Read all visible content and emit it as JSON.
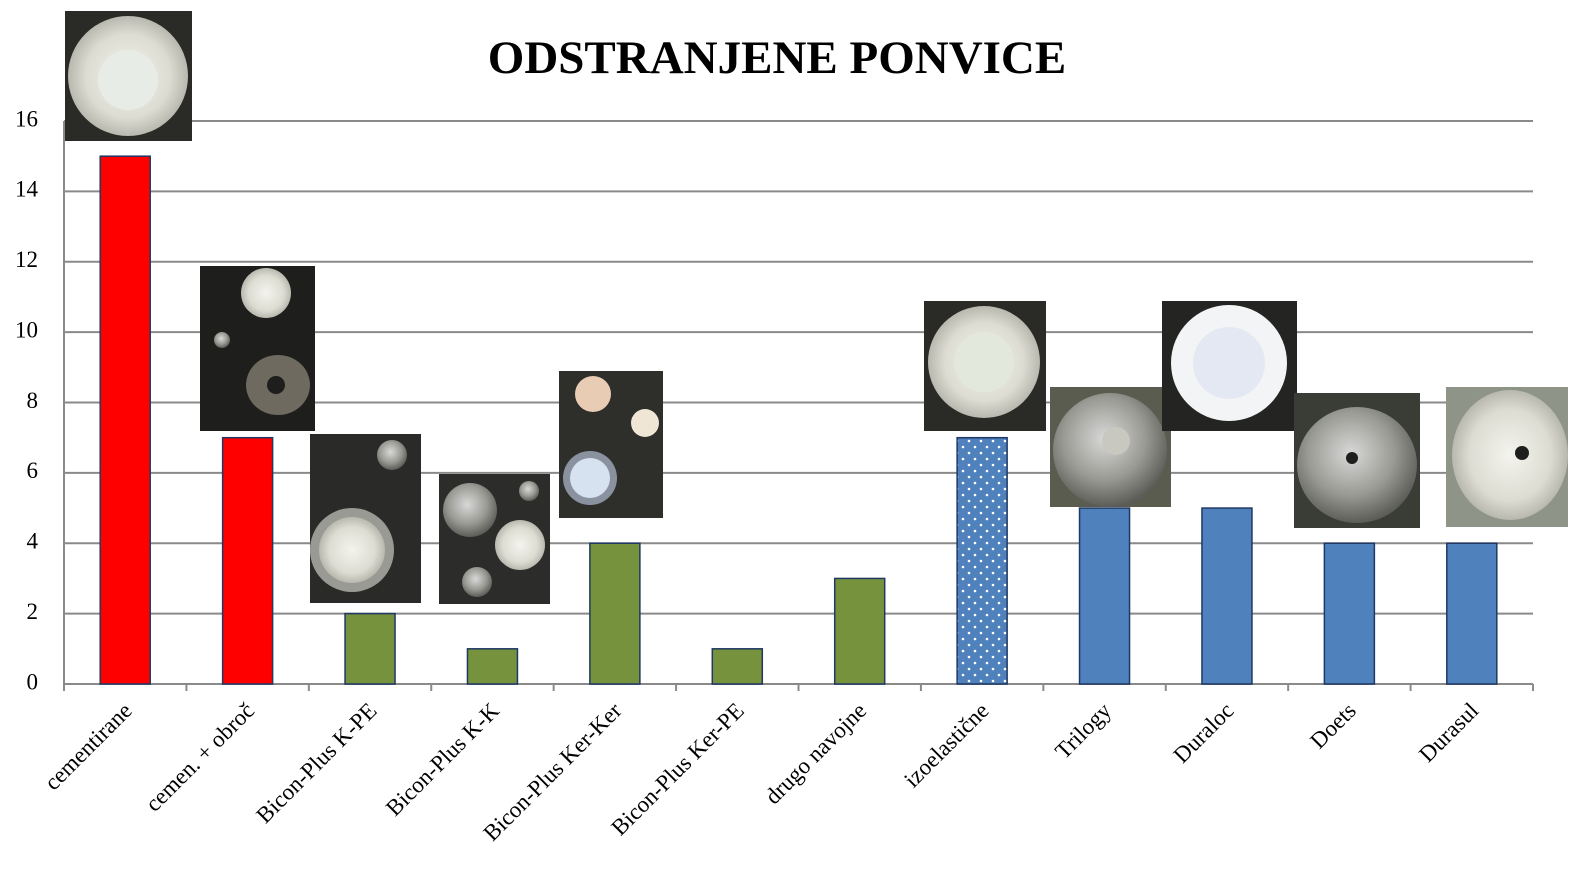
{
  "chart_data": {
    "type": "bar",
    "title": "ODSTRANJENE PONVICE",
    "categories": [
      "cementirane",
      "cemen. + obroč",
      "Bicon-Plus K-PE",
      "Bicon-Plus K-K",
      "Bicon-Plus Ker-Ker",
      "Bicon-Plus Ker-PE",
      "drugo navojne",
      "izoelastične",
      "Trilogy",
      "Duraloc",
      "Doets",
      "Durasul"
    ],
    "values": [
      15,
      7,
      2,
      1,
      4,
      1,
      3,
      7,
      5,
      5,
      4,
      4
    ],
    "colors": [
      "#ff0000",
      "#ff0000",
      "#76923c",
      "#76923c",
      "#76923c",
      "#76923c",
      "#76923c",
      "#4f81bd",
      "#4f81bd",
      "#4f81bd",
      "#4f81bd",
      "#4f81bd"
    ],
    "patterns": [
      "solid",
      "solid",
      "solid",
      "solid",
      "solid",
      "solid",
      "solid",
      "dots",
      "solid",
      "solid",
      "solid",
      "solid"
    ],
    "ylim": [
      0,
      16
    ],
    "yticks": [
      0,
      2,
      4,
      6,
      8,
      10,
      12,
      14,
      16
    ],
    "grid": true
  }
}
